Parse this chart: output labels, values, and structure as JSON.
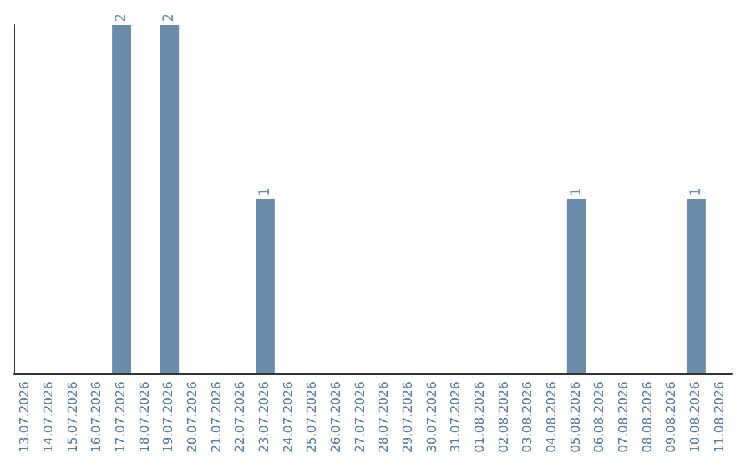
{
  "chart_data": {
    "type": "bar",
    "categories": [
      "13.07.2026",
      "14.07.2026",
      "15.07.2026",
      "16.07.2026",
      "17.07.2026",
      "18.07.2026",
      "19.07.2026",
      "20.07.2026",
      "21.07.2026",
      "22.07.2026",
      "23.07.2026",
      "24.07.2026",
      "25.07.2026",
      "26.07.2026",
      "27.07.2026",
      "28.07.2026",
      "29.07.2026",
      "30.07.2026",
      "31.07.2026",
      "01.08.2026",
      "02.08.2026",
      "03.08.2026",
      "04.08.2026",
      "05.08.2026",
      "06.08.2026",
      "07.08.2026",
      "08.08.2026",
      "09.08.2026",
      "10.08.2026",
      "11.08.2026"
    ],
    "values": [
      0,
      0,
      0,
      0,
      2,
      0,
      2,
      0,
      0,
      0,
      1,
      0,
      0,
      0,
      0,
      0,
      0,
      0,
      0,
      0,
      0,
      0,
      0,
      1,
      0,
      0,
      0,
      0,
      1,
      0
    ],
    "value_labels": [
      null,
      null,
      null,
      null,
      "2",
      null,
      "2",
      null,
      null,
      null,
      "1",
      null,
      null,
      null,
      null,
      null,
      null,
      null,
      null,
      null,
      null,
      null,
      null,
      "1",
      null,
      null,
      null,
      null,
      "1",
      null
    ],
    "color": "#6b8cab",
    "ylim": [
      0,
      2
    ]
  }
}
